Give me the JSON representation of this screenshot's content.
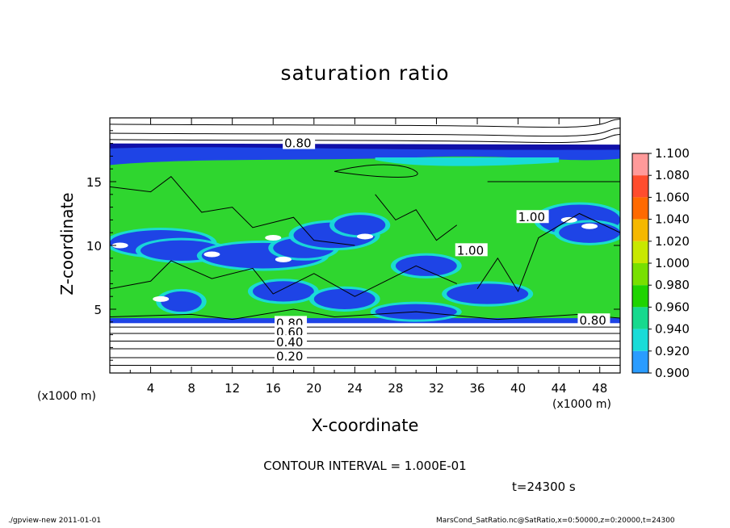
{
  "chart_data": {
    "type": "heatmap",
    "title": "saturation ratio",
    "xlabel": "X-coordinate",
    "ylabel": "Z-coordinate",
    "x_unit": "(x1000 m)",
    "z_unit": "(x1000 m)",
    "xlim": [
      0,
      50
    ],
    "ylim": [
      0,
      20
    ],
    "x_ticks": [
      "4",
      "8",
      "12",
      "16",
      "20",
      "24",
      "28",
      "32",
      "36",
      "40",
      "44",
      "48"
    ],
    "y_ticks": [
      "5",
      "10",
      "15"
    ],
    "colorbar": {
      "levels": [
        "1.100",
        "1.080",
        "1.060",
        "1.040",
        "1.020",
        "1.000",
        "0.980",
        "0.960",
        "0.940",
        "0.920",
        "0.900"
      ],
      "colors": [
        "#ffffff",
        "#ff9a9a",
        "#ff4d2e",
        "#ff6a00",
        "#f5b800",
        "#c8e800",
        "#78e000",
        "#1fd400",
        "#17d98e",
        "#19dcd8",
        "#2a9cff",
        "#1e44e6",
        "#1010a8",
        "#6a1aa8"
      ]
    },
    "contour_labels": [
      "0.80",
      "0.80",
      "0.60",
      "0.40",
      "0.20",
      "0.80",
      "1.00",
      "1.00"
    ],
    "contour_interval": "1.000E-01",
    "footnote": "CONTOUR INTERVAL = 1.000E-01",
    "time_label": "t=24300 s"
  },
  "footer": {
    "left": "./gpview-new   2011-01-01",
    "right": "MarsCond_SatRatio.nc@SatRatio,x=0:50000,z=0:20000,t=24300"
  },
  "colors": {
    "green": "#2fd62f",
    "blue": "#1e44e6",
    "cyan": "#19dcd8",
    "navy": "#1010a8"
  }
}
